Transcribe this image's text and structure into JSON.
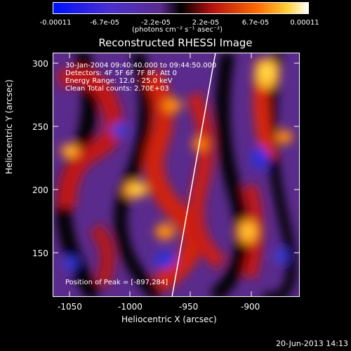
{
  "colorbar": {
    "ticks": [
      {
        "label": "-0.00011"
      },
      {
        "label": "-6.7e-05"
      },
      {
        "label": "-2.2e-05"
      },
      {
        "label": "2.2e-05"
      },
      {
        "label": "6.7e-05"
      },
      {
        "label": "0.00011"
      }
    ],
    "unit": "(photons cm⁻² s⁻¹ asec⁻²)"
  },
  "title": "Reconstructed RHESSI Image",
  "info": {
    "time": "30-Jan-2004 09:40:40.000 to 09:44:50.000",
    "detectors": "Detectors: 4F 5F 6F 7F 8F, Att 0",
    "energy": "Energy Range: 12.0 - 25.0 keV",
    "clean": "Clean    Total counts: 2.70E+03",
    "peak": "Position of Peak = [-897,284]"
  },
  "axes": {
    "xlabel": "Heliocentric X (arcsec)",
    "ylabel": "Heliocentric Y (arcsec)",
    "xticks": [
      "-1050",
      "-1000",
      "-950",
      "-900"
    ],
    "yticks": [
      "300",
      "250",
      "200",
      "150"
    ],
    "xlim": [
      -1065,
      -872
    ],
    "ylim": [
      115,
      308
    ]
  },
  "timestamp": "20-Jun-2013 14:13",
  "colors": {
    "background": "#000000",
    "foreground": "#ffffff"
  }
}
